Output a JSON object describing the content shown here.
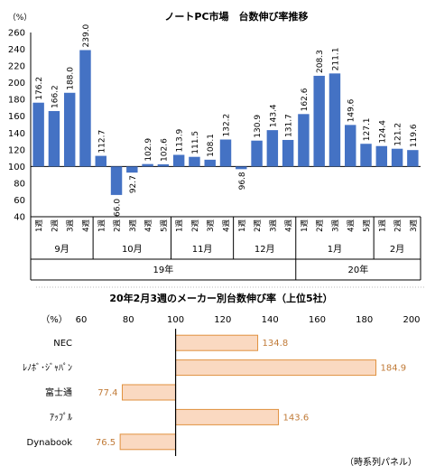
{
  "chart_data": [
    {
      "type": "bar",
      "title": "ノートPC市場　台数伸び率推移",
      "ylabel": "（%）",
      "ylim": [
        40,
        260
      ],
      "yticks": [
        40,
        60,
        80,
        100,
        120,
        140,
        160,
        180,
        200,
        220,
        240,
        260
      ],
      "baseline": 100,
      "grid": false,
      "color": "#4472c4",
      "categories": [
        "1週",
        "2週",
        "3週",
        "4週",
        "1週",
        "2週",
        "3週",
        "4週",
        "5週",
        "1週",
        "2週",
        "3週",
        "4週",
        "1週",
        "2週",
        "3週",
        "4週",
        "1週",
        "2週",
        "3週",
        "4週",
        "5週",
        "1週",
        "2週",
        "3週"
      ],
      "values": [
        176.2,
        166.2,
        188.0,
        239.0,
        112.7,
        66.0,
        92.7,
        102.9,
        102.6,
        113.9,
        111.5,
        108.1,
        132.2,
        96.8,
        130.9,
        143.4,
        131.7,
        162.6,
        208.3,
        211.1,
        149.6,
        127.1,
        124.4,
        121.2,
        119.6
      ],
      "value_labels": [
        "176.2",
        "166.2",
        "188.0",
        "239.0",
        "112.7",
        "66.0",
        "92.7",
        "102.9",
        "102.6",
        "113.9",
        "111.5",
        "108.1",
        "132.2",
        "96.8",
        "130.9",
        "143.4",
        "131.7",
        "162.6",
        "208.3",
        "211.1",
        "149.6",
        "127.1",
        "124.4",
        "121.2",
        "119.6"
      ],
      "months": [
        {
          "label": "9月",
          "count": 4
        },
        {
          "label": "10月",
          "count": 5
        },
        {
          "label": "11月",
          "count": 4
        },
        {
          "label": "12月",
          "count": 4
        },
        {
          "label": "1月",
          "count": 5
        },
        {
          "label": "2月",
          "count": 3
        }
      ],
      "years": [
        {
          "label": "19年",
          "count": 17
        },
        {
          "label": "20年",
          "count": 8
        }
      ]
    },
    {
      "type": "bar",
      "orientation": "horizontal",
      "title": "20年2月3週のメーカー別台数伸び率（上位5社）",
      "xlabel": "（%）",
      "xlim": [
        60,
        200
      ],
      "xticks": [
        60,
        80,
        100,
        120,
        140,
        160,
        180,
        200
      ],
      "baseline": 100,
      "color": "#fad9c1",
      "border_color": "#e0913f",
      "label_color": "#c07a37",
      "categories": [
        "NEC",
        "ﾚﾉﾎﾞ･ｼﾞｬﾊﾟﾝ",
        "富士通",
        "ｱｯﾌﾟﾙ",
        "Dynabook"
      ],
      "values": [
        134.8,
        184.9,
        77.4,
        143.6,
        76.5
      ],
      "value_labels": [
        "134.8",
        "184.9",
        "77.4",
        "143.6",
        "76.5"
      ]
    }
  ],
  "footnote": "（時系列パネル）"
}
